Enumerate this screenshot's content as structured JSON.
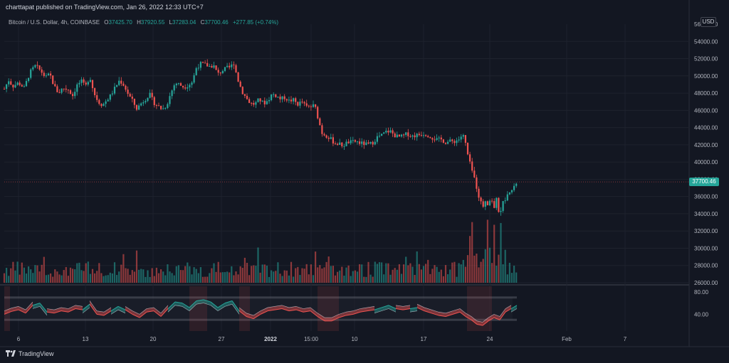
{
  "publisher_line": "charttapat published on TradingView.com, Jan 26, 2022 12:33 UTC+7",
  "legend": {
    "symbol": "Bitcoin / U.S. Dollar, 4h, COINBASE",
    "open_label": "O",
    "open": "37425.70",
    "high_label": "H",
    "high": "37920.55",
    "low_label": "L",
    "low": "37283.04",
    "close_label": "C",
    "close": "37700.46",
    "change": "+277.85 (+0.74%)"
  },
  "currency_button": "USD",
  "last_price_tag": "37700.46",
  "footer_brand": "TradingView",
  "colors": {
    "up": "#26a69a",
    "down": "#ef5350",
    "background": "#131722",
    "grid": "#2a2e39"
  },
  "chart_data": {
    "type": "candlestick",
    "timeframe": "4h",
    "price_axis_ticks": [
      "54000.00",
      "52000.00",
      "50000.00",
      "48000.00",
      "46000.00",
      "44000.00",
      "42000.00",
      "40000.00",
      "38000.00",
      "36000.00",
      "34000.00",
      "32000.00",
      "30000.00",
      "28000.00",
      "26000.00"
    ],
    "price_axis_top_partial": "56000.00",
    "ylim": [
      26000,
      56000
    ],
    "time_axis_ticks": [
      {
        "label": "6",
        "bold": false
      },
      {
        "label": "13",
        "bold": false
      },
      {
        "label": "20",
        "bold": false
      },
      {
        "label": "27",
        "bold": false
      },
      {
        "label": "2022",
        "bold": true
      },
      {
        "label": "15:00",
        "bold": false
      },
      {
        "label": "10",
        "bold": false
      },
      {
        "label": "17",
        "bold": false
      },
      {
        "label": "24",
        "bold": false
      },
      {
        "label": "Feb",
        "bold": false
      },
      {
        "label": "7",
        "bold": false
      }
    ],
    "close_path": [
      [
        0,
        48500
      ],
      [
        6,
        49500
      ],
      [
        12,
        48800
      ],
      [
        20,
        49200
      ],
      [
        28,
        48600
      ],
      [
        36,
        50400
      ],
      [
        44,
        51200
      ],
      [
        52,
        50500
      ],
      [
        58,
        49800
      ],
      [
        64,
        50200
      ],
      [
        70,
        48800
      ],
      [
        76,
        48000
      ],
      [
        82,
        48600
      ],
      [
        90,
        48400
      ],
      [
        96,
        47700
      ],
      [
        102,
        48900
      ],
      [
        108,
        49400
      ],
      [
        114,
        48700
      ],
      [
        120,
        50000
      ],
      [
        126,
        48000
      ],
      [
        132,
        47000
      ],
      [
        138,
        46600
      ],
      [
        144,
        47200
      ],
      [
        150,
        47800
      ],
      [
        156,
        48700
      ],
      [
        162,
        49500
      ],
      [
        168,
        48900
      ],
      [
        174,
        47900
      ],
      [
        180,
        47100
      ],
      [
        186,
        46200
      ],
      [
        192,
        46800
      ],
      [
        198,
        47300
      ],
      [
        204,
        47900
      ],
      [
        210,
        46900
      ],
      [
        216,
        46500
      ],
      [
        222,
        46100
      ],
      [
        228,
        46600
      ],
      [
        234,
        48000
      ],
      [
        240,
        49200
      ],
      [
        246,
        49000
      ],
      [
        252,
        48700
      ],
      [
        258,
        48900
      ],
      [
        264,
        49300
      ],
      [
        270,
        51000
      ],
      [
        276,
        51400
      ],
      [
        282,
        51300
      ],
      [
        288,
        51100
      ],
      [
        294,
        51200
      ],
      [
        300,
        50200
      ],
      [
        306,
        50600
      ],
      [
        312,
        50900
      ],
      [
        318,
        51000
      ],
      [
        322,
        51600
      ],
      [
        328,
        49600
      ],
      [
        334,
        48200
      ],
      [
        340,
        47400
      ],
      [
        346,
        46800
      ],
      [
        352,
        46700
      ],
      [
        358,
        47300
      ],
      [
        364,
        46800
      ],
      [
        370,
        47100
      ],
      [
        376,
        47900
      ],
      [
        382,
        47700
      ],
      [
        388,
        47300
      ],
      [
        394,
        47500
      ],
      [
        400,
        47100
      ],
      [
        406,
        47200
      ],
      [
        412,
        46700
      ],
      [
        418,
        47000
      ],
      [
        424,
        46400
      ],
      [
        430,
        46400
      ],
      [
        436,
        46600
      ],
      [
        442,
        44700
      ],
      [
        446,
        43400
      ],
      [
        452,
        43100
      ],
      [
        458,
        42700
      ],
      [
        464,
        42200
      ],
      [
        470,
        42100
      ],
      [
        476,
        41900
      ],
      [
        482,
        42300
      ],
      [
        488,
        42300
      ],
      [
        494,
        42400
      ],
      [
        500,
        42200
      ],
      [
        506,
        42100
      ],
      [
        512,
        42000
      ],
      [
        518,
        42300
      ],
      [
        524,
        42900
      ],
      [
        530,
        43100
      ],
      [
        536,
        43500
      ],
      [
        542,
        43600
      ],
      [
        548,
        43100
      ],
      [
        554,
        42900
      ],
      [
        560,
        43000
      ],
      [
        566,
        43300
      ],
      [
        572,
        43000
      ],
      [
        578,
        43100
      ],
      [
        584,
        43200
      ],
      [
        590,
        43300
      ],
      [
        596,
        43100
      ],
      [
        602,
        42800
      ],
      [
        608,
        42600
      ],
      [
        614,
        42600
      ],
      [
        620,
        42300
      ],
      [
        626,
        42400
      ],
      [
        632,
        42400
      ],
      [
        638,
        42600
      ],
      [
        644,
        43200
      ],
      [
        648,
        42100
      ],
      [
        652,
        40400
      ],
      [
        656,
        39300
      ],
      [
        660,
        38200
      ],
      [
        664,
        36900
      ],
      [
        668,
        35600
      ],
      [
        672,
        34800
      ],
      [
        676,
        35600
      ],
      [
        680,
        35100
      ],
      [
        684,
        35900
      ],
      [
        688,
        34700
      ],
      [
        692,
        35800
      ],
      [
        696,
        33400
      ],
      [
        700,
        35300
      ],
      [
        704,
        35800
      ],
      [
        708,
        36800
      ],
      [
        712,
        36600
      ],
      [
        716,
        37000
      ],
      [
        720,
        37700
      ]
    ],
    "oscillator": {
      "axis_ticks": [
        "80.00",
        "40.00"
      ],
      "ylim": [
        10,
        90
      ],
      "upper_band": 70,
      "lower_band": 30,
      "value_path": [
        [
          0,
          40
        ],
        [
          10,
          45
        ],
        [
          20,
          48
        ],
        [
          30,
          42
        ],
        [
          40,
          56
        ],
        [
          50,
          60
        ],
        [
          60,
          44
        ],
        [
          70,
          42
        ],
        [
          80,
          46
        ],
        [
          90,
          44
        ],
        [
          100,
          50
        ],
        [
          110,
          48
        ],
        [
          120,
          58
        ],
        [
          130,
          40
        ],
        [
          140,
          38
        ],
        [
          150,
          46
        ],
        [
          160,
          54
        ],
        [
          170,
          48
        ],
        [
          180,
          40
        ],
        [
          190,
          34
        ],
        [
          200,
          44
        ],
        [
          210,
          46
        ],
        [
          220,
          36
        ],
        [
          230,
          50
        ],
        [
          240,
          62
        ],
        [
          250,
          60
        ],
        [
          260,
          52
        ],
        [
          270,
          64
        ],
        [
          280,
          66
        ],
        [
          290,
          62
        ],
        [
          300,
          52
        ],
        [
          310,
          60
        ],
        [
          320,
          64
        ],
        [
          330,
          46
        ],
        [
          340,
          36
        ],
        [
          350,
          32
        ],
        [
          360,
          40
        ],
        [
          370,
          46
        ],
        [
          380,
          48
        ],
        [
          390,
          50
        ],
        [
          400,
          46
        ],
        [
          410,
          48
        ],
        [
          420,
          44
        ],
        [
          430,
          46
        ],
        [
          440,
          36
        ],
        [
          450,
          28
        ],
        [
          460,
          28
        ],
        [
          470,
          34
        ],
        [
          480,
          38
        ],
        [
          490,
          40
        ],
        [
          500,
          44
        ],
        [
          510,
          46
        ],
        [
          520,
          48
        ],
        [
          530,
          52
        ],
        [
          540,
          56
        ],
        [
          550,
          50
        ],
        [
          560,
          48
        ],
        [
          570,
          50
        ],
        [
          580,
          52
        ],
        [
          590,
          46
        ],
        [
          600,
          42
        ],
        [
          610,
          38
        ],
        [
          620,
          36
        ],
        [
          630,
          40
        ],
        [
          640,
          44
        ],
        [
          648,
          36
        ],
        [
          656,
          30
        ],
        [
          664,
          22
        ],
        [
          672,
          20
        ],
        [
          680,
          28
        ],
        [
          688,
          34
        ],
        [
          696,
          30
        ],
        [
          704,
          44
        ],
        [
          712,
          50
        ],
        [
          720,
          56
        ]
      ]
    }
  }
}
